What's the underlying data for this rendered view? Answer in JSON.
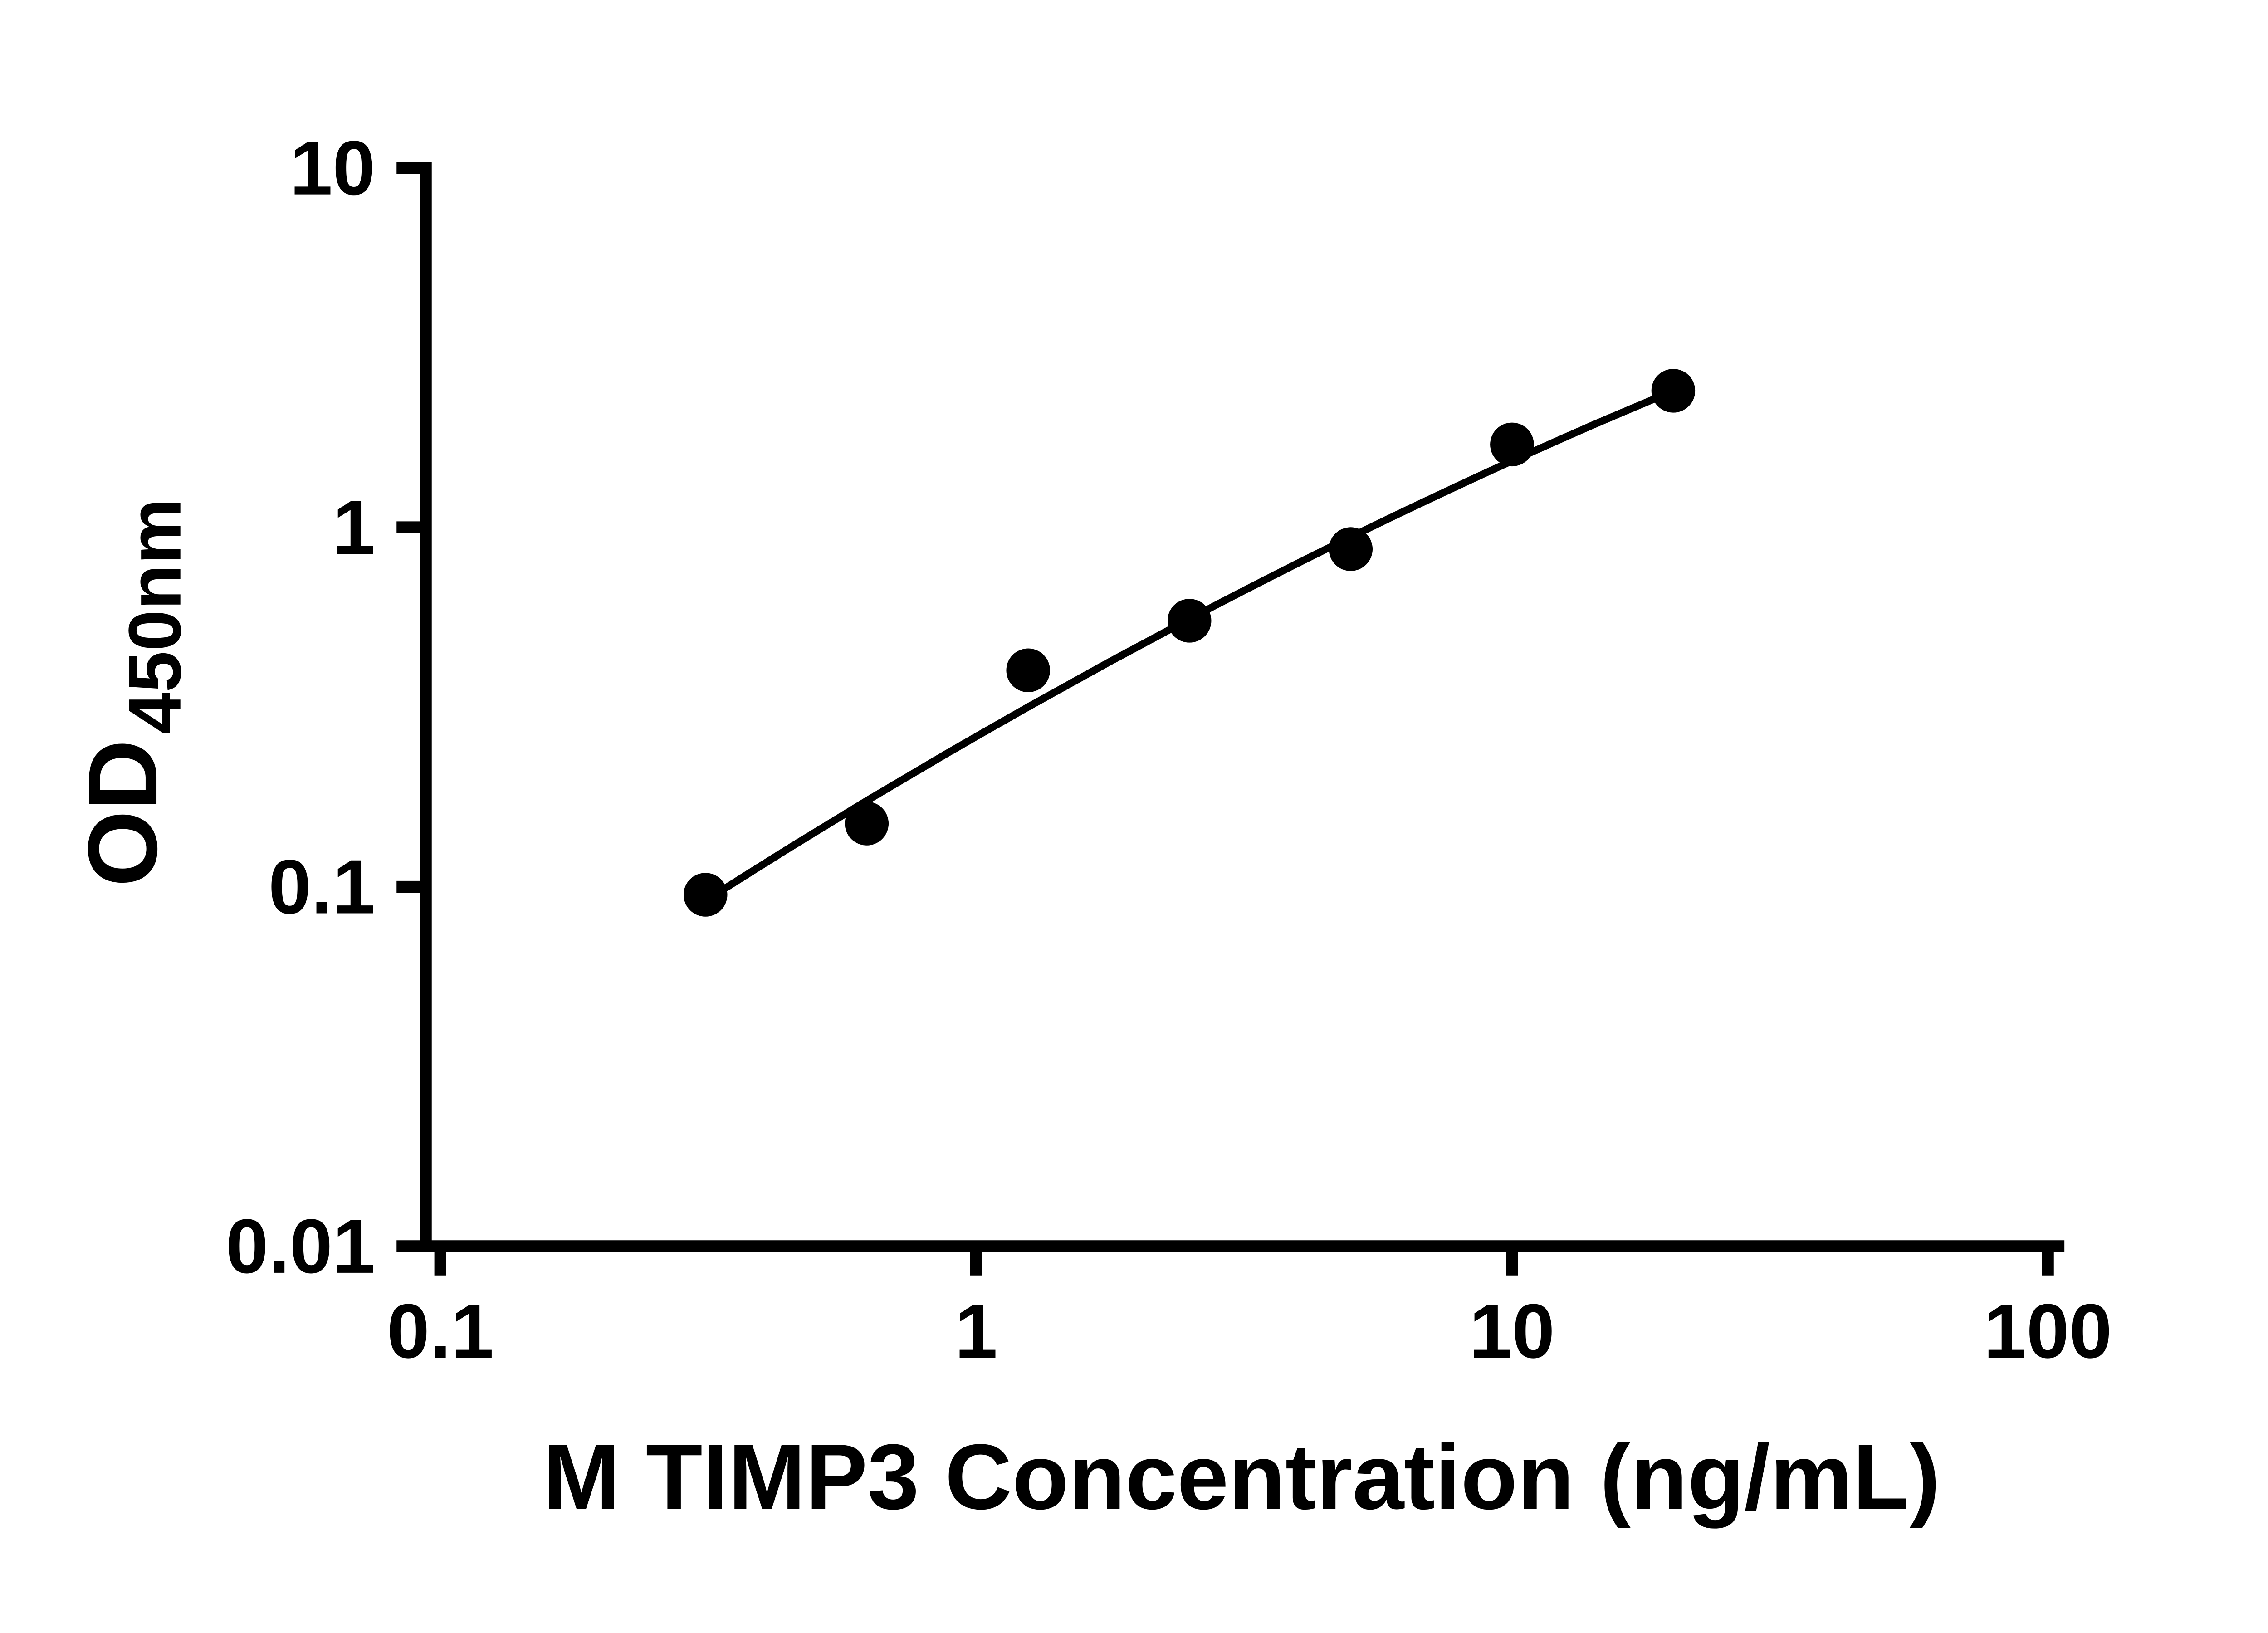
{
  "chart_data": {
    "type": "scatter",
    "title": "",
    "xlabel": "M TIMP3 Concentration (ng/mL)",
    "ylabel": "OD",
    "ylabel_subscript": "450nm",
    "x_scale": "log",
    "y_scale": "log",
    "xlim": [
      0.1,
      100
    ],
    "ylim": [
      0.01,
      10
    ],
    "x_ticks": [
      0.1,
      1,
      10,
      100
    ],
    "x_tick_labels": [
      "0.1",
      "1",
      "10",
      "100"
    ],
    "y_ticks": [
      0.01,
      0.1,
      1,
      10
    ],
    "y_tick_labels": [
      "0.01",
      "0.1",
      "1",
      "10"
    ],
    "grid": false,
    "legend": false,
    "points": [
      [
        0.3125,
        0.095
      ],
      [
        0.625,
        0.15
      ],
      [
        1.25,
        0.4
      ],
      [
        2.5,
        0.55
      ],
      [
        5,
        0.87
      ],
      [
        10,
        1.7
      ],
      [
        20,
        2.4
      ]
    ],
    "fit_curve": [
      [
        0.3125,
        0.0915
      ],
      [
        0.442,
        0.1266
      ],
      [
        0.625,
        0.1735
      ],
      [
        0.884,
        0.2354
      ],
      [
        1.25,
        0.3164
      ],
      [
        1.768,
        0.4214
      ],
      [
        2.5,
        0.5559
      ],
      [
        3.537,
        0.7264
      ],
      [
        5.0,
        0.9399
      ],
      [
        7.071,
        1.2049
      ],
      [
        10.0,
        1.5302
      ],
      [
        14.142,
        1.9245
      ],
      [
        20.0,
        2.3974
      ]
    ],
    "colors": {
      "points": "#000000",
      "curve": "#000000",
      "axes": "#000000",
      "text": "#000000",
      "background": "#ffffff"
    }
  }
}
